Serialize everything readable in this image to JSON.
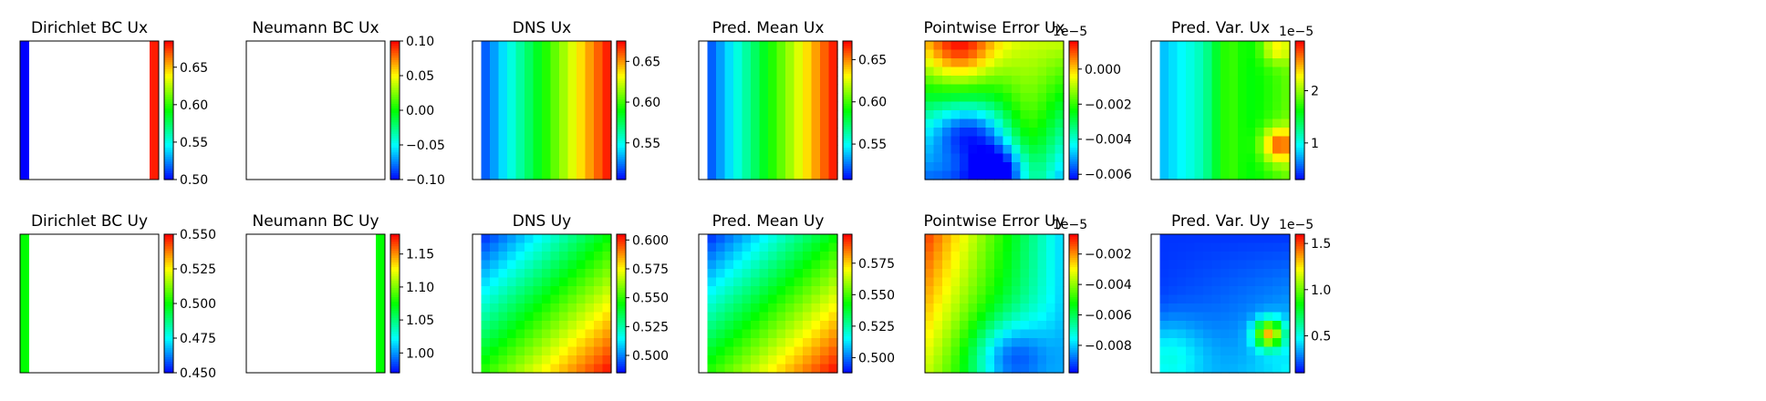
{
  "palette": {
    "jet_stops": [
      "#0000ff",
      "#00ffff",
      "#00ff00",
      "#ffff00",
      "#ff0000"
    ],
    "bc_dirichlet_ux_left": "#0000ff",
    "bc_dirichlet_ux_right": "#ff0000",
    "bc_dirichlet_uy_left": "#00ff00",
    "bc_neumann_uy_right": "#00ff00"
  },
  "chart_data": [
    {
      "type": "heatmap",
      "title": "Dirichlet BC Ux",
      "grid_size": 16,
      "field": "boundary_strips",
      "left_value": 0.5,
      "right_value": 0.68,
      "colorbar": {
        "min": 0.5,
        "max": 0.685,
        "ticks": [
          0.5,
          0.55,
          0.6,
          0.65
        ],
        "tick_labels": [
          "0.50",
          "0.55",
          "0.60",
          "0.65"
        ],
        "multiplier": ""
      }
    },
    {
      "type": "heatmap",
      "title": "Neumann BC Ux",
      "grid_size": 16,
      "field": "empty",
      "colorbar": {
        "min": -0.1,
        "max": 0.1,
        "ticks": [
          -0.1,
          -0.05,
          0.0,
          0.05,
          0.1
        ],
        "tick_labels": [
          "−0.10",
          "−0.05",
          "0.00",
          "0.05",
          "0.10"
        ],
        "multiplier": ""
      }
    },
    {
      "type": "heatmap",
      "title": "DNS Ux",
      "grid_size": 16,
      "field": "x_gradient",
      "value_range": [
        0.505,
        0.675
      ],
      "colorbar": {
        "min": 0.505,
        "max": 0.675,
        "ticks": [
          0.55,
          0.6,
          0.65
        ],
        "tick_labels": [
          "0.55",
          "0.60",
          "0.65"
        ],
        "multiplier": ""
      }
    },
    {
      "type": "heatmap",
      "title": "Pred. Mean Ux",
      "grid_size": 16,
      "field": "x_gradient",
      "value_range": [
        0.508,
        0.672
      ],
      "colorbar": {
        "min": 0.508,
        "max": 0.672,
        "ticks": [
          0.55,
          0.6,
          0.65
        ],
        "tick_labels": [
          "0.55",
          "0.60",
          "0.65"
        ],
        "multiplier": ""
      }
    },
    {
      "type": "heatmap",
      "title": "Pointwise Error Ux",
      "grid_size": 16,
      "field": "error_ux",
      "value_range": [
        -0.0063,
        0.0016
      ],
      "colorbar": {
        "min": -0.0063,
        "max": 0.0016,
        "ticks": [
          -0.006,
          -0.004,
          -0.002,
          0.0
        ],
        "tick_labels": [
          "−0.006",
          "−0.004",
          "−0.002",
          "0.000"
        ],
        "multiplier": "1e−5"
      }
    },
    {
      "type": "heatmap",
      "title": "Pred. Var. Ux",
      "grid_size": 16,
      "field": "variance_ux",
      "value_range": [
        0.3,
        2.95
      ],
      "colorbar": {
        "min": 0.3,
        "max": 2.95,
        "ticks": [
          1,
          2
        ],
        "tick_labels": [
          "1",
          "2"
        ],
        "multiplier": "1e−5"
      }
    },
    {
      "type": "heatmap",
      "title": "Dirichlet BC Uy",
      "grid_size": 16,
      "field": "boundary_left_only",
      "left_value": 0.5,
      "colorbar": {
        "min": 0.45,
        "max": 0.55,
        "ticks": [
          0.45,
          0.475,
          0.5,
          0.525,
          0.55
        ],
        "tick_labels": [
          "0.450",
          "0.475",
          "0.500",
          "0.525",
          "0.550"
        ],
        "multiplier": ""
      }
    },
    {
      "type": "heatmap",
      "title": "Neumann BC Uy",
      "grid_size": 16,
      "field": "boundary_right_only",
      "right_value": 1.075,
      "colorbar": {
        "min": 0.97,
        "max": 1.18,
        "ticks": [
          1.0,
          1.05,
          1.1,
          1.15
        ],
        "tick_labels": [
          "1.00",
          "1.05",
          "1.10",
          "1.15"
        ],
        "multiplier": ""
      }
    },
    {
      "type": "heatmap",
      "title": "DNS Uy",
      "grid_size": 16,
      "field": "diagonal_gradient",
      "value_range": [
        0.485,
        0.605
      ],
      "colorbar": {
        "min": 0.485,
        "max": 0.605,
        "ticks": [
          0.5,
          0.525,
          0.55,
          0.575,
          0.6
        ],
        "tick_labels": [
          "0.500",
          "0.525",
          "0.550",
          "0.575",
          "0.600"
        ],
        "multiplier": ""
      }
    },
    {
      "type": "heatmap",
      "title": "Pred. Mean Uy",
      "grid_size": 16,
      "field": "diagonal_gradient",
      "value_range": [
        0.488,
        0.598
      ],
      "colorbar": {
        "min": 0.488,
        "max": 0.598,
        "ticks": [
          0.5,
          0.525,
          0.55,
          0.575
        ],
        "tick_labels": [
          "0.500",
          "0.525",
          "0.550",
          "0.575"
        ],
        "multiplier": ""
      }
    },
    {
      "type": "heatmap",
      "title": "Pointwise Error Uy",
      "grid_size": 16,
      "field": "error_uy",
      "value_range": [
        -0.0098,
        -0.0007
      ],
      "colorbar": {
        "min": -0.0098,
        "max": -0.0007,
        "ticks": [
          -0.008,
          -0.006,
          -0.004,
          -0.002
        ],
        "tick_labels": [
          "−0.008",
          "−0.006",
          "−0.004",
          "−0.002"
        ],
        "multiplier": "1e−5"
      }
    },
    {
      "type": "heatmap",
      "title": "Pred. Var. Uy",
      "grid_size": 16,
      "field": "variance_uy",
      "value_range": [
        0.1,
        1.6
      ],
      "colorbar": {
        "min": 0.1,
        "max": 1.6,
        "ticks": [
          0.5,
          1.0,
          1.5
        ],
        "tick_labels": [
          "0.5",
          "1.0",
          "1.5"
        ],
        "multiplier": "1e−5"
      }
    }
  ]
}
